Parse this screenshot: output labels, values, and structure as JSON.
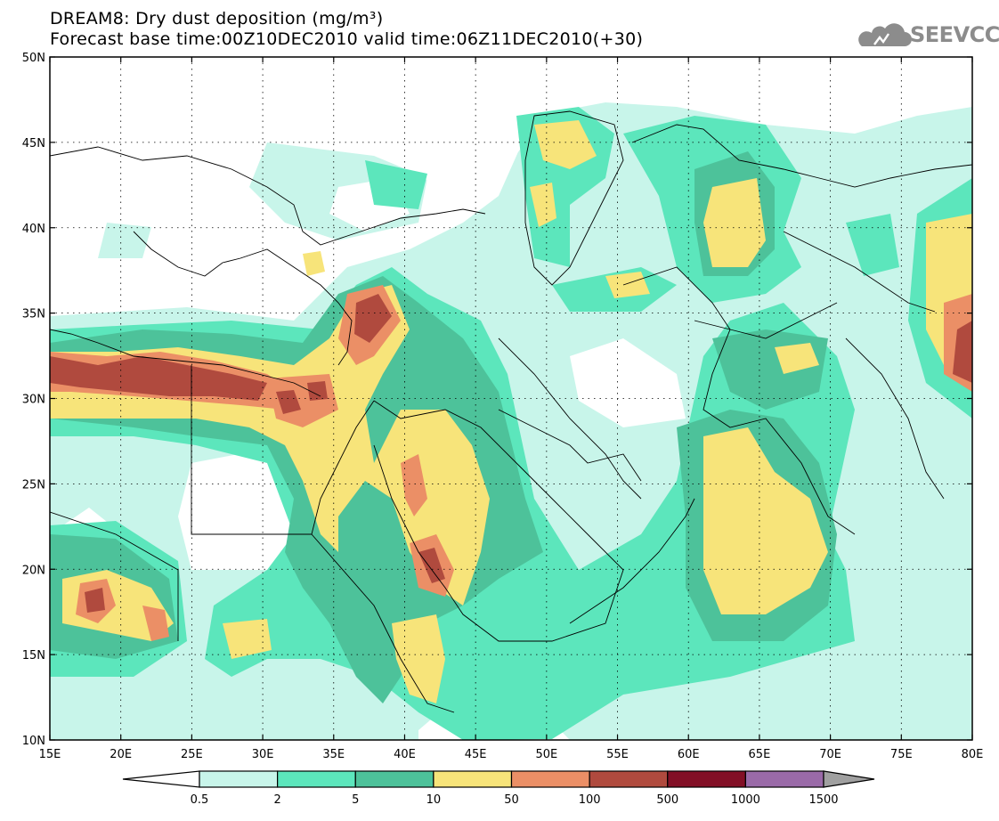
{
  "header": {
    "title_line1": "DREAM8: Dry dust deposition (mg/m³)",
    "title_line2": "Forecast base time:00Z10DEC2010 valid time:06Z11DEC2010(+30)",
    "logo_text": "SEEVCCC"
  },
  "map": {
    "lon_range": [
      15,
      80
    ],
    "lat_range": [
      10,
      50
    ],
    "lon_ticks": [
      "15E",
      "20E",
      "25E",
      "30E",
      "35E",
      "40E",
      "45E",
      "50E",
      "55E",
      "60E",
      "65E",
      "70E",
      "75E",
      "80E"
    ],
    "lat_ticks": [
      "10N",
      "15N",
      "20N",
      "25N",
      "30N",
      "35N",
      "40N",
      "45N",
      "50N"
    ],
    "grid": "dotted every 5 degrees"
  },
  "legend": {
    "thresholds": [
      "0.5",
      "2",
      "5",
      "10",
      "50",
      "100",
      "500",
      "1000",
      "1500"
    ],
    "colors": [
      "#c8f5ea",
      "#5ce6bc",
      "#4dc29a",
      "#f7e47a",
      "#eb8f66",
      "#b04a3e",
      "#820f26",
      "#9a6aa8",
      "#a0a0a0"
    ]
  }
}
